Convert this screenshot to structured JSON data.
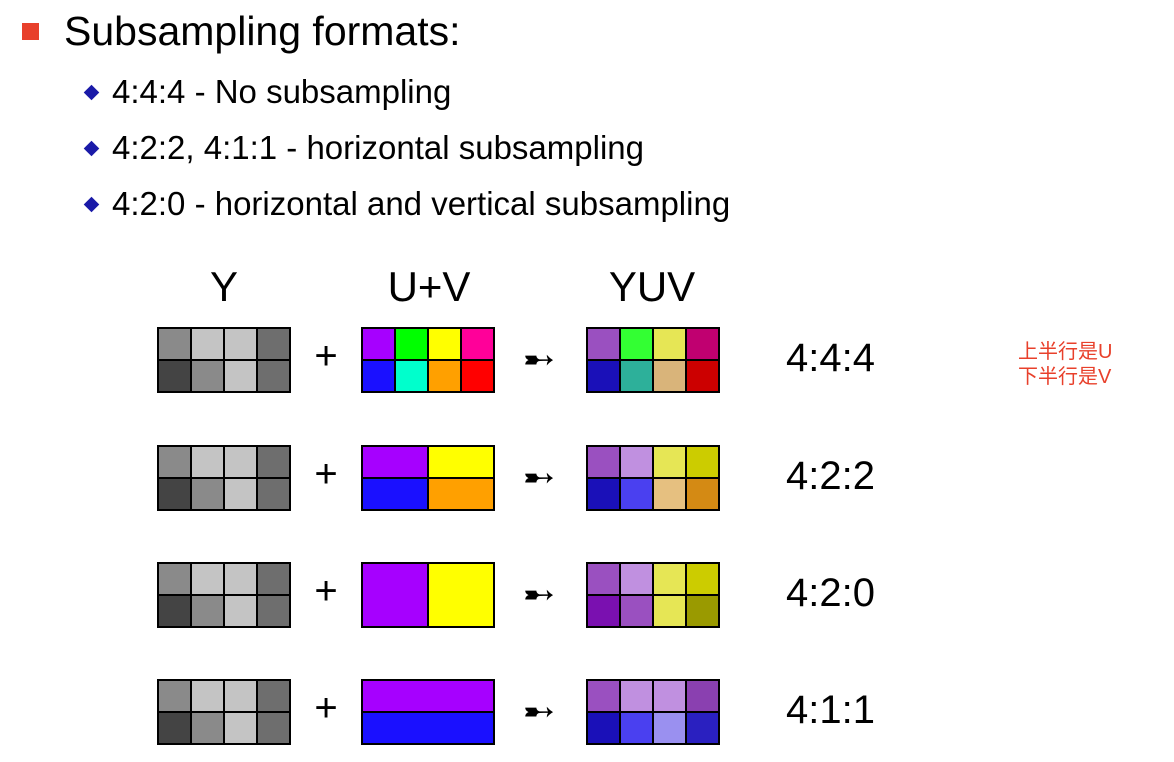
{
  "title": "Subsampling formats:",
  "bullets": [
    "4:4:4 - No subsampling",
    "4:2:2, 4:1:1 - horizontal subsampling",
    "4:2:0 - horizontal and vertical subsampling"
  ],
  "columns": {
    "y": "Y",
    "uv": "U+V",
    "yuv": "YUV"
  },
  "plus_symbol": "+",
  "arrow_symbol": "➸",
  "note": [
    "上半行是U",
    "下半行是V"
  ],
  "y_colors": [
    [
      "#8a8a8a",
      "#c4c4c4",
      "#c4c4c4",
      "#6e6e6e"
    ],
    [
      "#444444",
      "#8a8a8a",
      "#c4c4c4",
      "#6e6e6e"
    ]
  ],
  "rows": [
    {
      "ratio": "4:4:4",
      "uv_blocks": [
        {
          "c": "#a600ff",
          "col": 0,
          "row": 0,
          "w": 1,
          "h": 1
        },
        {
          "c": "#00ff00",
          "col": 1,
          "row": 0,
          "w": 1,
          "h": 1
        },
        {
          "c": "#ffff00",
          "col": 2,
          "row": 0,
          "w": 1,
          "h": 1
        },
        {
          "c": "#ff0099",
          "col": 3,
          "row": 0,
          "w": 1,
          "h": 1
        },
        {
          "c": "#1a10ff",
          "col": 0,
          "row": 1,
          "w": 1,
          "h": 1
        },
        {
          "c": "#00ffcc",
          "col": 1,
          "row": 1,
          "w": 1,
          "h": 1
        },
        {
          "c": "#ffa000",
          "col": 2,
          "row": 1,
          "w": 1,
          "h": 1
        },
        {
          "c": "#ff0000",
          "col": 3,
          "row": 1,
          "w": 1,
          "h": 1
        }
      ],
      "yuv_colors": [
        [
          "#9a50c0",
          "#33ff33",
          "#e6e655",
          "#c00070"
        ],
        [
          "#1a10b8",
          "#2db09a",
          "#d9b47a",
          "#cc0000"
        ]
      ]
    },
    {
      "ratio": "4:2:2",
      "uv_blocks": [
        {
          "c": "#a600ff",
          "col": 0,
          "row": 0,
          "w": 2,
          "h": 1
        },
        {
          "c": "#ffff00",
          "col": 2,
          "row": 0,
          "w": 2,
          "h": 1
        },
        {
          "c": "#1a10ff",
          "col": 0,
          "row": 1,
          "w": 2,
          "h": 1
        },
        {
          "c": "#ffa000",
          "col": 2,
          "row": 1,
          "w": 2,
          "h": 1
        }
      ],
      "yuv_colors": [
        [
          "#9a50c0",
          "#c090e0",
          "#e6e655",
          "#cccc00"
        ],
        [
          "#1a10b8",
          "#4a40f0",
          "#e6c080",
          "#d48a14"
        ]
      ]
    },
    {
      "ratio": "4:2:0",
      "uv_blocks": [
        {
          "c": "#a600ff",
          "col": 0,
          "row": 0,
          "w": 2,
          "h": 2
        },
        {
          "c": "#ffff00",
          "col": 2,
          "row": 0,
          "w": 2,
          "h": 2
        }
      ],
      "yuv_colors": [
        [
          "#9a50c0",
          "#c090e0",
          "#e6e655",
          "#cccc00"
        ],
        [
          "#7a10b0",
          "#9a50c0",
          "#e6e655",
          "#9a9a00"
        ]
      ]
    },
    {
      "ratio": "4:1:1",
      "uv_blocks": [
        {
          "c": "#a600ff",
          "col": 0,
          "row": 0,
          "w": 4,
          "h": 1
        },
        {
          "c": "#1a10ff",
          "col": 0,
          "row": 1,
          "w": 4,
          "h": 1
        }
      ],
      "yuv_colors": [
        [
          "#9a50c0",
          "#c090e0",
          "#c090e0",
          "#8a40b0"
        ],
        [
          "#1a10b8",
          "#4a40f0",
          "#9a90f0",
          "#2a20c0"
        ]
      ]
    }
  ]
}
